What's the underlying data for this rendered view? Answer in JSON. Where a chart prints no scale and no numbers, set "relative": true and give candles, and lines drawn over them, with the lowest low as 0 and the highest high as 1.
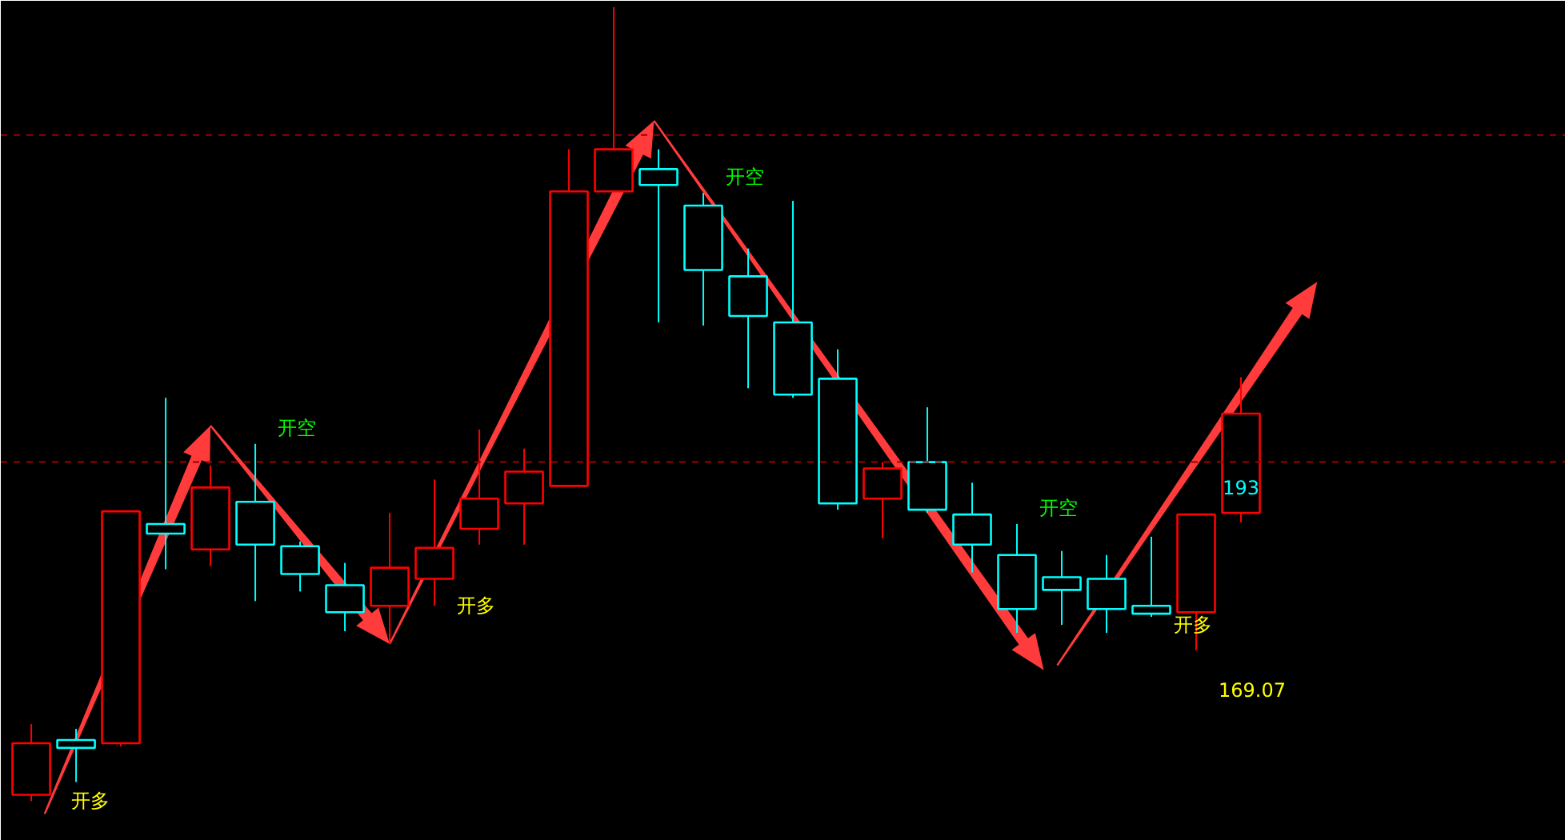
{
  "chart_data": {
    "type": "candlestick",
    "relative": true,
    "categories": [
      null,
      null,
      null,
      null,
      null,
      null,
      null,
      null,
      null,
      null,
      null,
      null,
      null,
      null,
      null,
      null,
      null,
      null,
      null,
      null,
      null,
      null,
      null,
      null,
      null,
      null,
      null,
      null
    ],
    "ohlc": [
      [
        0.008,
        0.097,
        0,
        0.073
      ],
      [
        0.077,
        0.091,
        0.024,
        0.067
      ],
      [
        0.073,
        0.365,
        0.069,
        0.365
      ],
      [
        0.349,
        0.508,
        0.292,
        0.337
      ],
      [
        0.317,
        0.423,
        0.296,
        0.395
      ],
      [
        0.377,
        0.45,
        0.252,
        0.323
      ],
      [
        0.321,
        0.327,
        0.264,
        0.286
      ],
      [
        0.272,
        0.3,
        0.214,
        0.238
      ],
      [
        0.246,
        0.363,
        0.198,
        0.294
      ],
      [
        0.28,
        0.405,
        0.246,
        0.319
      ],
      [
        0.343,
        0.468,
        0.323,
        0.381
      ],
      [
        0.375,
        0.444,
        0.323,
        0.415
      ],
      [
        0.397,
        0.821,
        0.397,
        0.768
      ],
      [
        0.768,
        1,
        0.768,
        0.821
      ],
      [
        0.796,
        0.821,
        0.603,
        0.776
      ],
      [
        0.75,
        0.766,
        0.599,
        0.669
      ],
      [
        0.661,
        0.696,
        0.52,
        0.611
      ],
      [
        0.603,
        0.756,
        0.508,
        0.512
      ],
      [
        0.532,
        0.569,
        0.367,
        0.375
      ],
      [
        0.381,
        0.427,
        0.331,
        0.419
      ],
      [
        0.427,
        0.496,
        0.363,
        0.367
      ],
      [
        0.361,
        0.401,
        0.288,
        0.323
      ],
      [
        0.31,
        0.349,
        0.212,
        0.242
      ],
      [
        0.282,
        0.315,
        0.222,
        0.266
      ],
      [
        0.28,
        0.31,
        0.212,
        0.242
      ],
      [
        0.246,
        0.333,
        0.232,
        0.236
      ],
      [
        0.238,
        0.361,
        0.19,
        0.361
      ],
      [
        0.363,
        0.534,
        0.351,
        0.488
      ]
    ],
    "colors": [
      "#ff0000",
      "#00ffff",
      "#ff0000",
      "#00ffff",
      "#ff0000",
      "#00ffff",
      "#00ffff",
      "#00ffff",
      "#ff0000",
      "#ff0000",
      "#ff0000",
      "#ff0000",
      "#ff0000",
      "#ff0000",
      "#00ffff",
      "#00ffff",
      "#00ffff",
      "#00ffff",
      "#00ffff",
      "#ff0000",
      "#00ffff",
      "#00ffff",
      "#00ffff",
      "#00ffff",
      "#00ffff",
      "#00ffff",
      "#ff0000",
      "#ff0000"
    ],
    "ref_lines": [
      {
        "axis": "y",
        "value": 0.839,
        "color": "#a00000",
        "line_style": "dashed"
      },
      {
        "axis": "y",
        "value": 0.427,
        "color": "#a00000",
        "line_style": "dashed"
      }
    ],
    "annotations": [
      "开多",
      "开空",
      "开多",
      "开空",
      "开空",
      "开多",
      "193",
      "169.07"
    ]
  }
}
